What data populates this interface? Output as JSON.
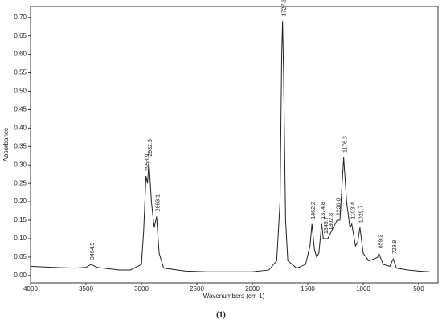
{
  "chart_data": {
    "type": "line",
    "xlabel": "Wavenumbers (cm-1)",
    "ylabel": "Absorbance",
    "caption": "(1)",
    "x": [
      4000,
      3800,
      3600,
      3500,
      3454.9,
      3400,
      3200,
      3100,
      3000,
      2980,
      2958.9,
      2945,
      2932.5,
      2910,
      2885,
      2863.1,
      2840,
      2800,
      2600,
      2400,
      2200,
      2000,
      1850,
      1780,
      1750,
      1735,
      1727.3,
      1718,
      1700,
      1680,
      1600,
      1520,
      1480,
      1462.2,
      1440,
      1420,
      1400,
      1374.8,
      1360,
      1345.7,
      1320,
      1302.8,
      1270,
      1236.0,
      1210,
      1176.3,
      1150,
      1120,
      1103.4,
      1070,
      1050,
      1029.7,
      1000,
      950,
      900,
      870,
      859.2,
      820,
      760,
      729.9,
      700,
      600,
      500,
      400
    ],
    "y": [
      0.025,
      0.022,
      0.02,
      0.022,
      0.03,
      0.022,
      0.015,
      0.015,
      0.03,
      0.12,
      0.27,
      0.25,
      0.31,
      0.2,
      0.13,
      0.16,
      0.06,
      0.02,
      0.012,
      0.01,
      0.01,
      0.01,
      0.015,
      0.04,
      0.2,
      0.6,
      0.69,
      0.55,
      0.15,
      0.04,
      0.02,
      0.03,
      0.08,
      0.14,
      0.07,
      0.05,
      0.06,
      0.14,
      0.1,
      0.1,
      0.1,
      0.11,
      0.13,
      0.15,
      0.15,
      0.32,
      0.2,
      0.13,
      0.14,
      0.08,
      0.09,
      0.13,
      0.06,
      0.04,
      0.045,
      0.05,
      0.06,
      0.03,
      0.025,
      0.045,
      0.02,
      0.015,
      0.012,
      0.01
    ],
    "color": "#222222",
    "xlim": [
      4000,
      326
    ],
    "ylim": [
      -0.02,
      0.73
    ],
    "xticks": [
      4000,
      3500,
      3000,
      2500,
      2000,
      1500,
      1000,
      500
    ],
    "yticks": [
      {
        "value": 0,
        "label": "0.00"
      },
      {
        "value": 0.05,
        "label": "0.05"
      },
      {
        "value": 0.1,
        "label": "0.10"
      },
      {
        "value": 0.15,
        "label": "0.15"
      },
      {
        "value": 0.2,
        "label": "0.20"
      },
      {
        "value": 0.25,
        "label": "0.25"
      },
      {
        "value": 0.3,
        "label": "0.30"
      },
      {
        "value": 0.35,
        "label": "0.35"
      },
      {
        "value": 0.4,
        "label": "0.40"
      },
      {
        "value": 0.45,
        "label": "0.45"
      },
      {
        "value": 0.5,
        "label": "0.50"
      },
      {
        "value": 0.55,
        "label": "0.55"
      },
      {
        "value": 0.6,
        "label": "0.60"
      },
      {
        "value": 0.65,
        "label": "0.65"
      },
      {
        "value": 0.7,
        "label": "0.70"
      }
    ],
    "peak_labels": [
      3454.9,
      2958.9,
      2932.5,
      2863.1,
      1727.3,
      1462.2,
      1374.8,
      1345.7,
      1302.8,
      {
        "value": 1236.0,
        "label": "1236.0"
      },
      1176.3,
      1103.4,
      1029.7,
      859.2,
      729.9
    ]
  }
}
